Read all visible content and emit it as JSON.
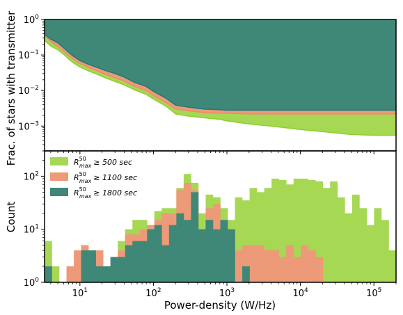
{
  "chart_data": [
    {
      "type": "area",
      "ylabel": "Frac. of stars with transmitter",
      "xscale": "log",
      "yscale": "log",
      "xlim": [
        3.3,
        200000
      ],
      "ylim": [
        0.0002,
        1.0
      ],
      "yticks": [
        {
          "value": 1.0,
          "label": "10",
          "exp": "0"
        },
        {
          "value": 0.1,
          "label": "10",
          "exp": "−1"
        },
        {
          "value": 0.01,
          "label": "10",
          "exp": "−2"
        },
        {
          "value": 0.001,
          "label": "10",
          "exp": "−3"
        }
      ],
      "x": [
        3.3,
        4,
        5,
        6,
        7,
        8,
        10,
        13,
        17,
        22,
        30,
        40,
        55,
        80,
        100,
        150,
        200,
        300,
        500,
        800,
        1000,
        2000,
        5000,
        10000,
        20000,
        50000,
        100000,
        200000
      ],
      "series": [
        {
          "name": "R50max >= 500 sec",
          "color": "#a6d854",
          "values": [
            0.38,
            0.28,
            0.22,
            0.16,
            0.12,
            0.095,
            0.07,
            0.055,
            0.045,
            0.037,
            0.03,
            0.024,
            0.017,
            0.013,
            0.0095,
            0.006,
            0.0039,
            0.0034,
            0.003,
            0.0029,
            0.0028,
            0.0028,
            0.0028,
            0.0028,
            0.0028,
            0.0028,
            0.0028,
            0.0028
          ],
          "lower": [
            0.26,
            0.18,
            0.14,
            0.105,
            0.078,
            0.062,
            0.046,
            0.036,
            0.029,
            0.023,
            0.018,
            0.0145,
            0.0105,
            0.0078,
            0.0058,
            0.0036,
            0.0022,
            0.0019,
            0.0017,
            0.00155,
            0.0014,
            0.00115,
            0.00095,
            0.0008,
            0.0007,
            0.00058,
            0.00055,
            0.00055
          ]
        },
        {
          "name": "R50max >= 1100 sec",
          "color": "#ec9a77",
          "values": [
            0.38,
            0.28,
            0.22,
            0.16,
            0.12,
            0.095,
            0.07,
            0.055,
            0.045,
            0.037,
            0.03,
            0.024,
            0.017,
            0.013,
            0.0095,
            0.006,
            0.0039,
            0.0034,
            0.003,
            0.0029,
            0.0028,
            0.0028,
            0.0028,
            0.0028,
            0.0028,
            0.0028,
            0.0028,
            0.0028
          ],
          "lower": [
            0.36,
            0.24,
            0.175,
            0.13,
            0.095,
            0.077,
            0.058,
            0.045,
            0.036,
            0.029,
            0.023,
            0.0185,
            0.0132,
            0.0098,
            0.0073,
            0.0045,
            0.003,
            0.0027,
            0.0024,
            0.0023,
            0.0023,
            0.0022,
            0.0022,
            0.0022,
            0.0022,
            0.0022,
            0.0022,
            0.0022
          ]
        },
        {
          "name": "R50max >= 1800 sec",
          "color": "#3f8878",
          "values": [
            1.0,
            1.0,
            1.0,
            1.0,
            1.0,
            1.0,
            1.0,
            1.0,
            1.0,
            1.0,
            1.0,
            1.0,
            1.0,
            1.0,
            1.0,
            1.0,
            1.0,
            1.0,
            1.0,
            1.0,
            1.0,
            1.0,
            1.0,
            1.0,
            1.0,
            1.0,
            1.0,
            1.0
          ],
          "lower": [
            0.38,
            0.28,
            0.22,
            0.16,
            0.12,
            0.095,
            0.07,
            0.055,
            0.045,
            0.037,
            0.03,
            0.024,
            0.017,
            0.013,
            0.0095,
            0.006,
            0.0039,
            0.0034,
            0.003,
            0.0029,
            0.0028,
            0.0028,
            0.0028,
            0.0028,
            0.0028,
            0.0028,
            0.0028,
            0.0028
          ]
        }
      ]
    },
    {
      "type": "bar",
      "xlabel": "Power-density (W/Hz)",
      "ylabel": "Count",
      "xscale": "log",
      "yscale": "log",
      "xlim": [
        3.3,
        200000
      ],
      "ylim": [
        1,
        300
      ],
      "xticks": [
        {
          "value": 10,
          "label": "10",
          "exp": "1"
        },
        {
          "value": 100,
          "label": "10",
          "exp": "2"
        },
        {
          "value": 1000,
          "label": "10",
          "exp": "3"
        },
        {
          "value": 10000,
          "label": "10",
          "exp": "4"
        },
        {
          "value": 100000,
          "label": "10",
          "exp": "5"
        }
      ],
      "yticks": [
        {
          "value": 1,
          "label": "10",
          "exp": "0"
        },
        {
          "value": 10,
          "label": "10",
          "exp": "1"
        },
        {
          "value": 100,
          "label": "10",
          "exp": "2"
        }
      ],
      "bin_range": [
        3.3,
        200000
      ],
      "n_bins": 48,
      "legend_placement": "upper-left",
      "series": [
        {
          "name": "R",
          "name_sup": "50",
          "name_sub": "max",
          "name_tail": "≥ 500 sec",
          "color": "#a6d854",
          "values": [
            6,
            2,
            0,
            1,
            0,
            5,
            4,
            3,
            2,
            3,
            6,
            10,
            15,
            15,
            12,
            22,
            25,
            25,
            60,
            110,
            75,
            20,
            45,
            40,
            25,
            15,
            40,
            35,
            60,
            50,
            60,
            90,
            85,
            70,
            90,
            90,
            85,
            80,
            60,
            80,
            40,
            20,
            45,
            25,
            12,
            25,
            15,
            4
          ]
        },
        {
          "name": "R",
          "name_sup": "50",
          "name_sub": "max",
          "name_tail": "≥ 1100 sec",
          "color": "#ec9a77",
          "values": [
            2,
            0,
            0,
            2,
            4,
            5,
            3,
            4,
            2,
            3,
            4,
            8,
            8,
            10,
            12,
            15,
            20,
            20,
            55,
            75,
            55,
            10,
            25,
            30,
            15,
            10,
            4,
            5,
            5,
            5,
            4,
            4,
            3,
            5,
            3,
            5,
            4,
            3,
            1,
            1,
            1,
            1,
            1,
            1,
            1,
            1,
            1,
            1
          ]
        },
        {
          "name": "R",
          "name_sup": "50",
          "name_sub": "max",
          "name_tail": "≥ 1800 sec",
          "color": "#3f8878",
          "values": [
            2,
            0,
            0,
            1,
            1,
            4,
            4,
            2,
            2,
            3,
            3,
            5,
            6,
            6,
            10,
            12,
            5,
            12,
            20,
            15,
            50,
            10,
            15,
            10,
            15,
            10,
            1,
            2,
            1,
            1,
            1,
            1,
            1,
            1,
            1,
            1,
            1,
            1,
            1,
            1,
            1,
            1,
            1,
            1,
            1,
            1,
            1,
            1
          ]
        }
      ]
    }
  ]
}
